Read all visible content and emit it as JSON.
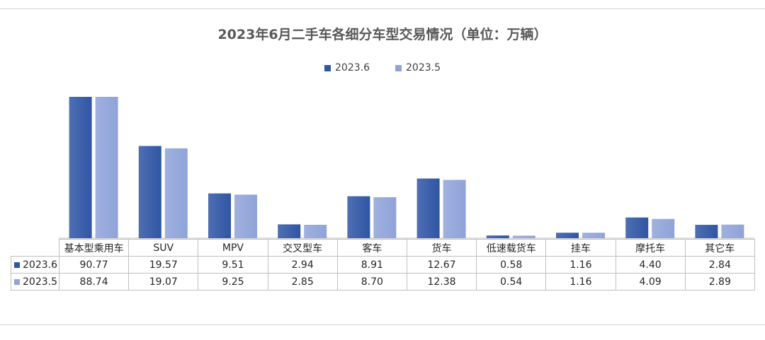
{
  "chart_data": {
    "type": "bar",
    "title": "2023年6月二手车各细分车型交易情况（单位：万辆）",
    "categories": [
      "基本型乘用车",
      "SUV",
      "MPV",
      "交叉型车",
      "客车",
      "货车",
      "低速载货车",
      "挂车",
      "摩托车",
      "其它车"
    ],
    "series": [
      {
        "name": "2023.6",
        "color": "#2f55a4",
        "values": [
          90.77,
          19.57,
          9.51,
          2.94,
          8.91,
          12.67,
          0.58,
          1.16,
          4.4,
          2.84
        ]
      },
      {
        "name": "2023.5",
        "color": "#8fa3d9",
        "values": [
          88.74,
          19.07,
          9.25,
          2.85,
          8.7,
          12.38,
          0.54,
          1.16,
          4.09,
          2.89
        ]
      }
    ],
    "value_labels": [
      [
        "90.77",
        "19.57",
        "9.51",
        "2.94",
        "8.91",
        "12.67",
        "0.58",
        "1.16",
        "4.40",
        "2.84"
      ],
      [
        "88.74",
        "19.07",
        "9.25",
        "2.85",
        "8.70",
        "12.38",
        "0.54",
        "1.16",
        "4.09",
        "2.89"
      ]
    ],
    "legend_position": "top",
    "grid": false,
    "data_table": true
  }
}
